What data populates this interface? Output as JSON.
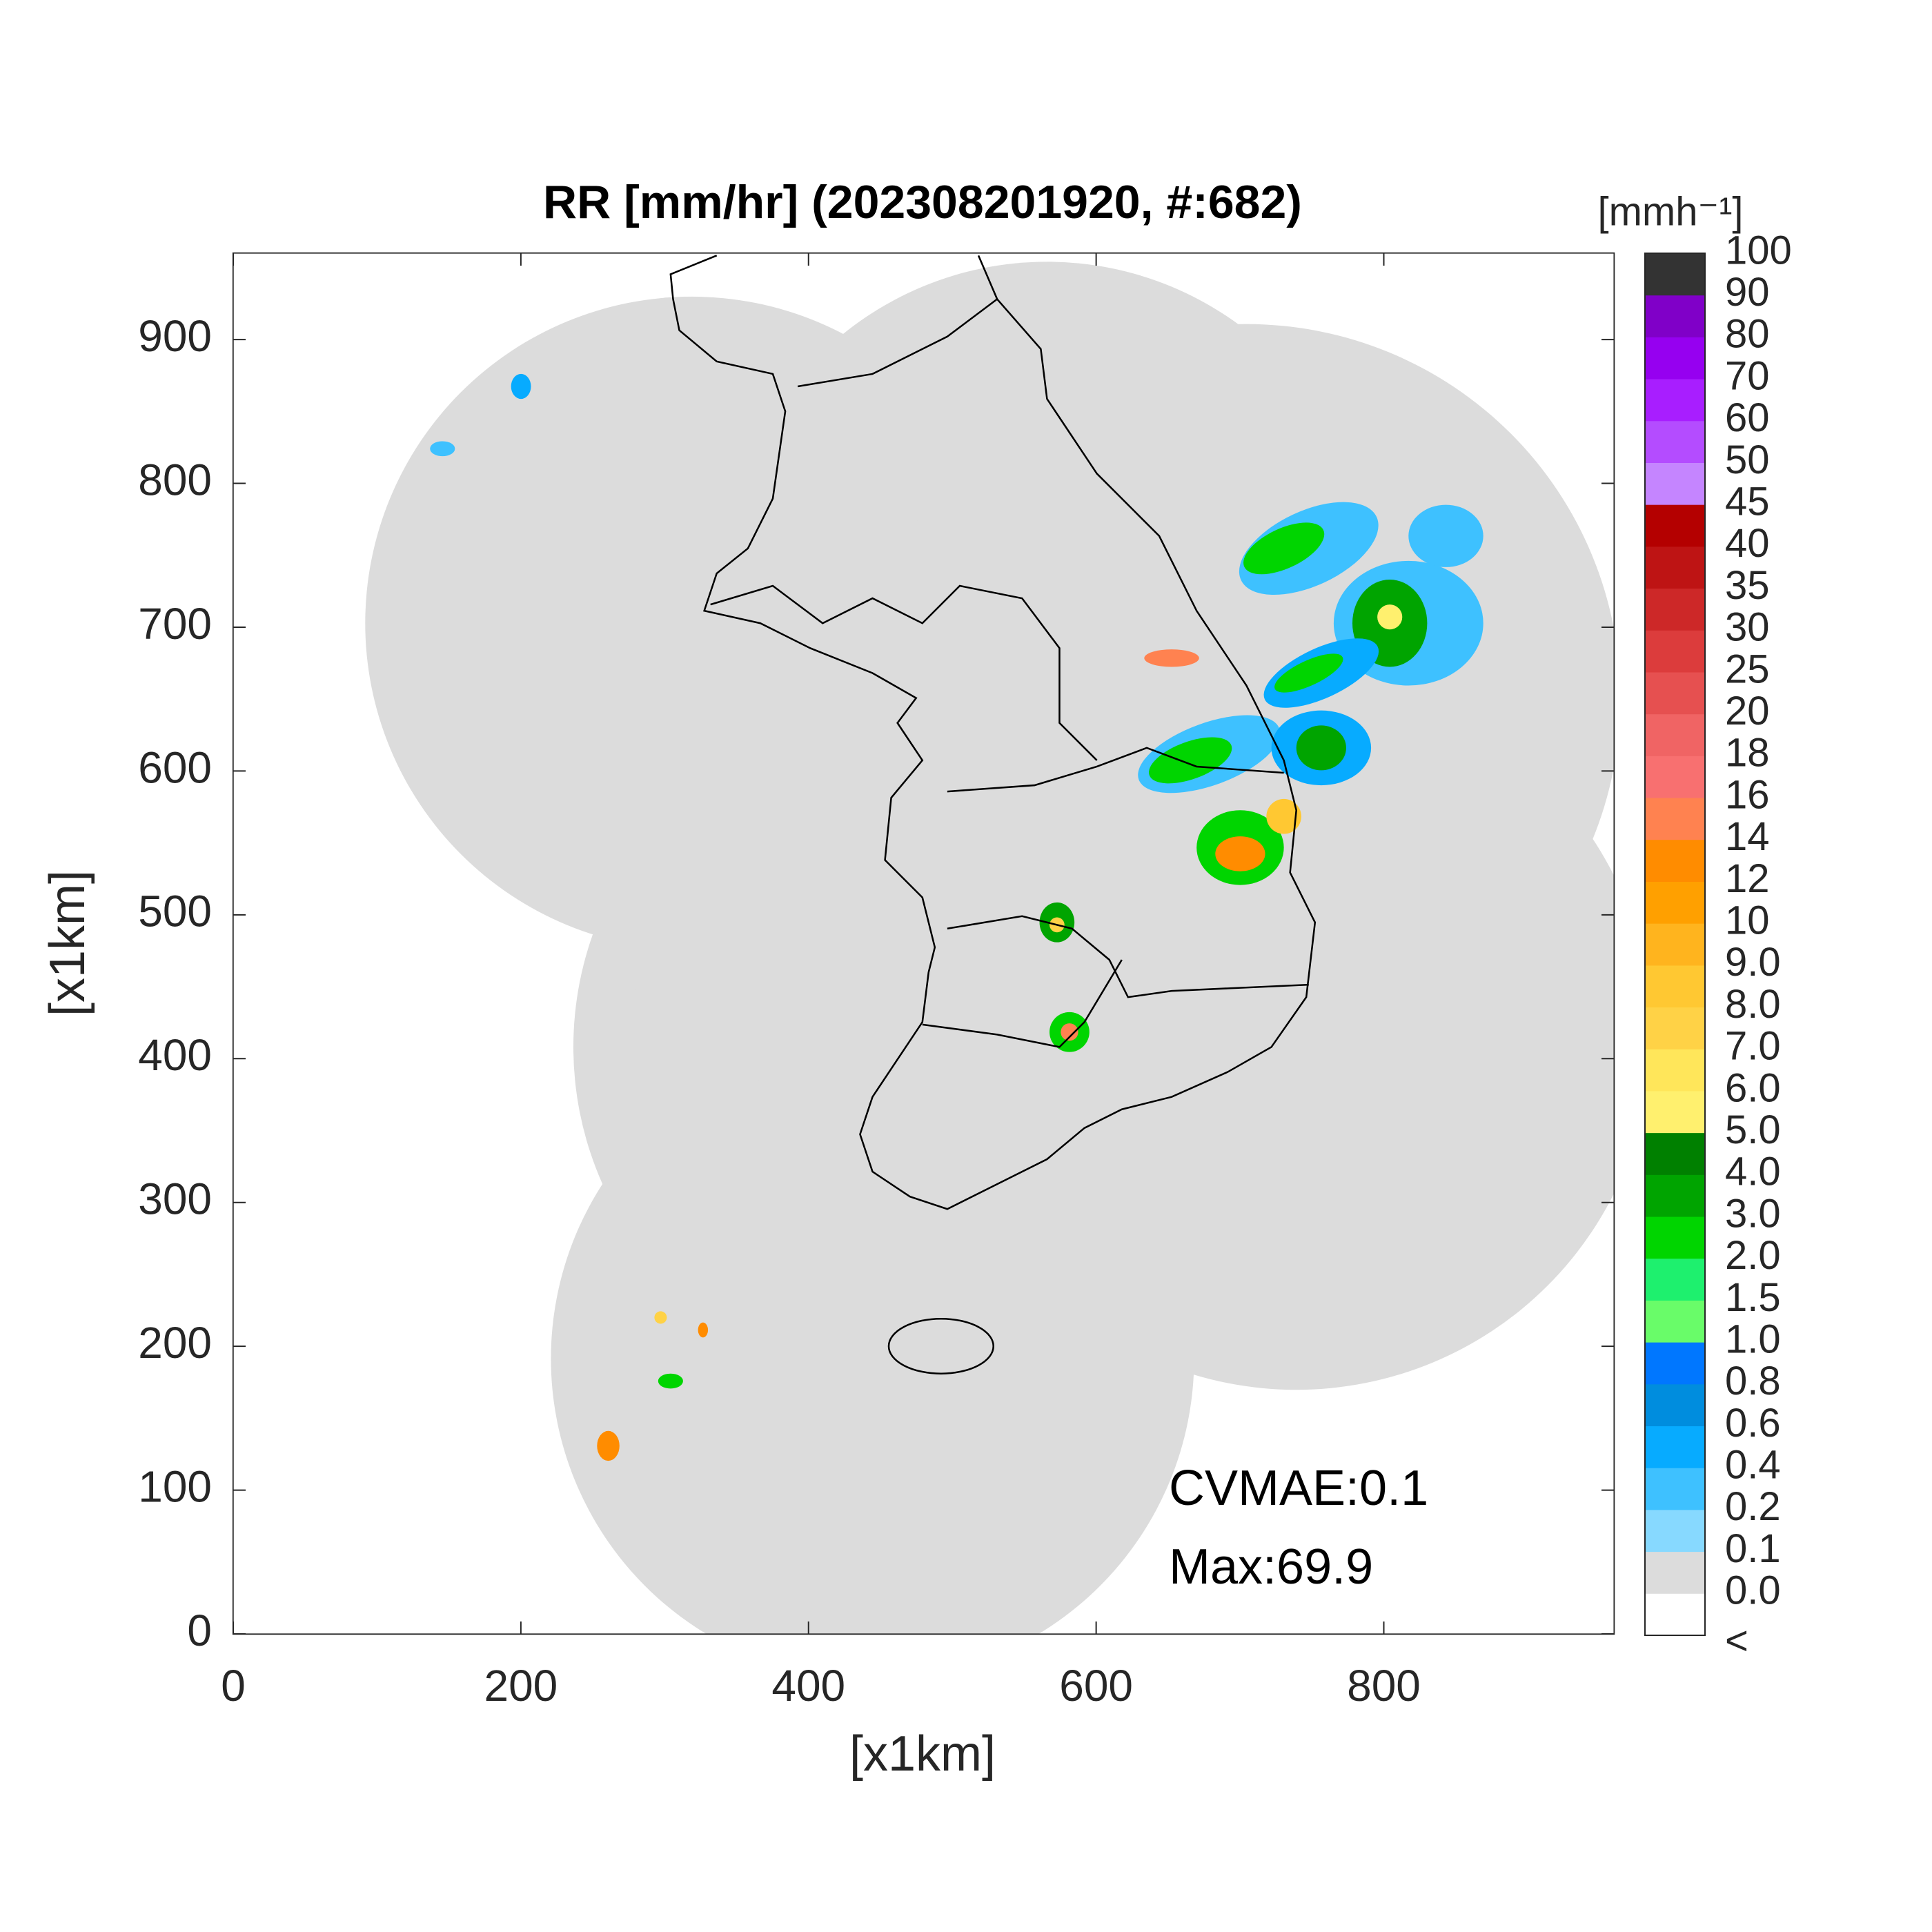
{
  "chart_data": {
    "type": "heatmap",
    "title": "RR [mm/hr] (202308201920, #:682)",
    "xlabel": "[x1km]",
    "ylabel": "[x1km]",
    "xlim": [
      0,
      960
    ],
    "ylim": [
      0,
      960
    ],
    "xticks": [
      0,
      200,
      400,
      600,
      800
    ],
    "yticks": [
      0,
      100,
      200,
      300,
      400,
      500,
      600,
      700,
      800,
      900
    ],
    "colorbar": {
      "title": "[mmh⁻¹]",
      "labels": [
        "<",
        "0.0",
        "0.1",
        "0.2",
        "0.4",
        "0.6",
        "0.8",
        "1.0",
        "1.5",
        "2.0",
        "3.0",
        "4.0",
        "5.0",
        "6.0",
        "7.0",
        "8.0",
        "9.0",
        "10",
        "12",
        "14",
        "16",
        "18",
        "20",
        "25",
        "30",
        "35",
        "40",
        "45",
        "50",
        "60",
        "70",
        "80",
        "90",
        "100"
      ],
      "colors": [
        "#ffffff",
        "#dcdcdc",
        "#87d9ff",
        "#3ec1ff",
        "#07abff",
        "#008dde",
        "#0077ff",
        "#69fc69",
        "#1ef06e",
        "#00d500",
        "#00a400",
        "#008000",
        "#fff06e",
        "#ffe65a",
        "#ffd246",
        "#ffc832",
        "#ffb41e",
        "#ffa000",
        "#ff8c00",
        "#ff8250",
        "#f87070",
        "#f06464",
        "#e65050",
        "#dc3c3c",
        "#cd2828",
        "#be1414",
        "#b40000",
        "#c585ff",
        "#b44cff",
        "#a81eff",
        "#9600f0",
        "#8000c8",
        "#333333"
      ]
    },
    "annotations": [
      "CVMAE:0.1",
      "Max:69.9"
    ]
  }
}
